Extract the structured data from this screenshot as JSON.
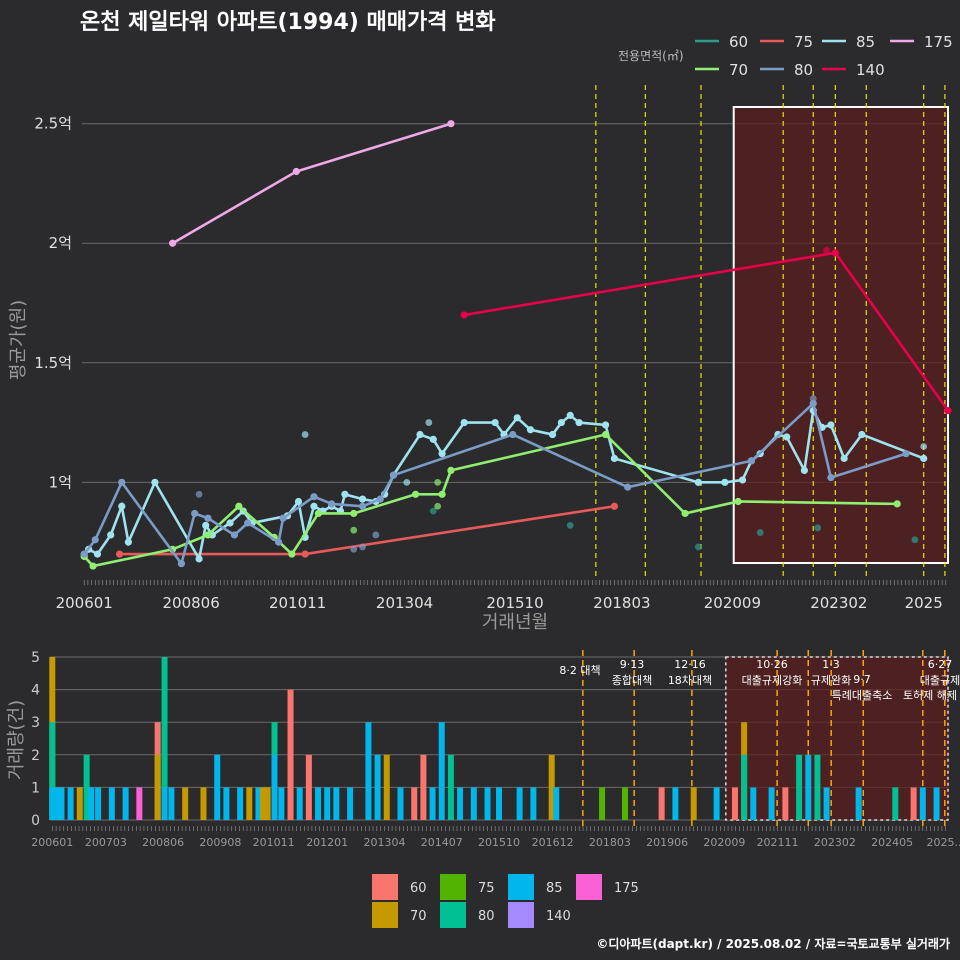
{
  "title": "온천 제일타워 아파트(1994) 매매가격 변화",
  "credit": "©디아파트(dapt.kr) / 2025.08.02 / 자료=국토교통부 실거래가",
  "colors": {
    "bg": "#2b2b2d",
    "grid": "#6b6b6b",
    "highlight": "#5a1f1f",
    "policy_line": "#e6e600",
    "policy_line_bottom": "#ffa500"
  },
  "top_chart": {
    "legend_title": "전용면적(㎡)",
    "ylabel": "평균가(원)",
    "xlabel": "거래년월",
    "y_ticks": [
      {
        "v": 1.0,
        "label": "1억"
      },
      {
        "v": 1.5,
        "label": "1.5억"
      },
      {
        "v": 2.0,
        "label": "2억"
      },
      {
        "v": 2.5,
        "label": "2.5억"
      }
    ],
    "x_ticks": [
      {
        "t": 2006.0,
        "label": "200601"
      },
      {
        "t": 2008.42,
        "label": "200806"
      },
      {
        "t": 2010.83,
        "label": "201011"
      },
      {
        "t": 2013.25,
        "label": "201304"
      },
      {
        "t": 2015.75,
        "label": "201510"
      },
      {
        "t": 2018.17,
        "label": "201803"
      },
      {
        "t": 2020.67,
        "label": "202009"
      },
      {
        "t": 2023.08,
        "label": "202302"
      },
      {
        "t": 2025.0,
        "label": "2025"
      }
    ]
  },
  "bottom_chart": {
    "ylabel": "거래량(건)",
    "y_ticks": [
      0,
      1,
      2,
      3,
      4,
      5
    ],
    "x_ticks": [
      {
        "t": 2006.0,
        "label": "200601"
      },
      {
        "t": 2007.17,
        "label": "200703"
      },
      {
        "t": 2008.42,
        "label": "200806"
      },
      {
        "t": 2009.67,
        "label": "200908"
      },
      {
        "t": 2010.83,
        "label": "201011"
      },
      {
        "t": 2012.0,
        "label": "201201"
      },
      {
        "t": 2013.25,
        "label": "201304"
      },
      {
        "t": 2014.5,
        "label": "201407"
      },
      {
        "t": 2015.75,
        "label": "201510"
      },
      {
        "t": 2016.92,
        "label": "201612"
      },
      {
        "t": 2018.17,
        "label": "201803"
      },
      {
        "t": 2019.42,
        "label": "201906"
      },
      {
        "t": 2020.67,
        "label": "202009"
      },
      {
        "t": 2021.83,
        "label": "202111"
      },
      {
        "t": 2023.08,
        "label": "202302"
      },
      {
        "t": 2024.33,
        "label": "202405"
      },
      {
        "t": 2025.5,
        "label": "2025..."
      }
    ],
    "annotations": [
      {
        "t": 2017.58,
        "date": "8·2",
        "text": "8·2 대책"
      },
      {
        "t": 2018.7,
        "date": "9·13",
        "text": "종합대책"
      },
      {
        "t": 2019.96,
        "date": "12·16",
        "text": "18차대책"
      },
      {
        "t": 2021.82,
        "date": "10·26",
        "text": "대출규제강화"
      },
      {
        "t": 2023.0,
        "date": "1·3",
        "text": "규제완화"
      },
      {
        "t": 2023.7,
        "date": "9·7",
        "text": "특례대출축소"
      },
      {
        "t": 2025.48,
        "date": "6·27",
        "text": "대출규제"
      },
      {
        "t": 2025.0,
        "date": "",
        "text": "토허제 해제"
      }
    ]
  },
  "chart_data": {
    "type": "line",
    "x_unit": "year (decimal, from 거래년월)",
    "y_unit": "억원",
    "x_range": [
      2005.95,
      2025.55
    ],
    "ylim": [
      0.6,
      2.62
    ],
    "highlight_range": [
      2020.7,
      2025.55
    ],
    "policy_dates": [
      2017.58,
      2018.7,
      2019.96,
      2021.82,
      2022.5,
      2023.0,
      2023.7,
      2025.0,
      2025.48
    ],
    "series": [
      {
        "name": "60",
        "color": "#2a9d8f",
        "points": [],
        "scatter": [
          [
            2013.9,
            0.88
          ],
          [
            2017.0,
            0.82
          ],
          [
            2019.9,
            0.73
          ],
          [
            2021.3,
            0.79
          ],
          [
            2022.6,
            0.81
          ],
          [
            2024.8,
            0.76
          ]
        ]
      },
      {
        "name": "75",
        "color": "#e85a5a",
        "points": [
          [
            2006.8,
            0.7
          ],
          [
            2011.0,
            0.7
          ],
          [
            2018.0,
            0.9
          ]
        ],
        "scatter": []
      },
      {
        "name": "85",
        "color": "#9fe3f0",
        "points": [
          [
            2006.0,
            0.7
          ],
          [
            2006.1,
            0.72
          ],
          [
            2006.3,
            0.7
          ],
          [
            2006.6,
            0.78
          ],
          [
            2006.85,
            0.9
          ],
          [
            2007.0,
            0.75
          ],
          [
            2007.6,
            1.0
          ],
          [
            2008.6,
            0.68
          ],
          [
            2008.75,
            0.82
          ],
          [
            2008.9,
            0.78
          ],
          [
            2009.3,
            0.83
          ],
          [
            2009.6,
            0.88
          ],
          [
            2009.8,
            0.83
          ],
          [
            2010.6,
            0.86
          ],
          [
            2010.85,
            0.92
          ],
          [
            2011.0,
            0.77
          ],
          [
            2011.2,
            0.9
          ],
          [
            2011.4,
            0.88
          ],
          [
            2011.6,
            0.9
          ],
          [
            2011.8,
            0.88
          ],
          [
            2011.9,
            0.95
          ],
          [
            2012.3,
            0.93
          ],
          [
            2012.6,
            0.92
          ],
          [
            2012.8,
            0.95
          ],
          [
            2013.0,
            1.03
          ],
          [
            2013.6,
            1.2
          ],
          [
            2013.9,
            1.18
          ],
          [
            2014.1,
            1.12
          ],
          [
            2014.6,
            1.25
          ],
          [
            2015.3,
            1.25
          ],
          [
            2015.5,
            1.2
          ],
          [
            2015.8,
            1.27
          ],
          [
            2016.1,
            1.22
          ],
          [
            2016.6,
            1.2
          ],
          [
            2016.8,
            1.25
          ],
          [
            2017.0,
            1.28
          ],
          [
            2017.2,
            1.25
          ],
          [
            2017.8,
            1.24
          ],
          [
            2018.0,
            1.1
          ],
          [
            2019.9,
            1.0
          ],
          [
            2020.5,
            1.0
          ],
          [
            2020.9,
            1.01
          ],
          [
            2021.1,
            1.09
          ],
          [
            2021.3,
            1.12
          ],
          [
            2021.7,
            1.2
          ],
          [
            2021.9,
            1.19
          ],
          [
            2022.3,
            1.05
          ],
          [
            2022.5,
            1.3
          ],
          [
            2022.7,
            1.23
          ],
          [
            2022.9,
            1.24
          ],
          [
            2023.2,
            1.1
          ],
          [
            2023.6,
            1.2
          ],
          [
            2025.0,
            1.1
          ]
        ],
        "scatter": [
          [
            2011.0,
            1.2
          ],
          [
            2013.3,
            1.0
          ],
          [
            2013.8,
            1.25
          ],
          [
            2025.0,
            1.15
          ]
        ]
      },
      {
        "name": "175",
        "color": "#f0a8e6",
        "points": [
          [
            2008.0,
            2.0
          ],
          [
            2010.8,
            2.3
          ],
          [
            2014.3,
            2.5
          ]
        ],
        "scatter": []
      },
      {
        "name": "70",
        "color": "#90ee70",
        "points": [
          [
            2006.0,
            0.69
          ],
          [
            2006.2,
            0.65
          ],
          [
            2008.0,
            0.72
          ],
          [
            2008.8,
            0.78
          ],
          [
            2009.5,
            0.9
          ],
          [
            2010.3,
            0.77
          ],
          [
            2010.7,
            0.7
          ],
          [
            2011.3,
            0.87
          ],
          [
            2012.1,
            0.87
          ],
          [
            2013.5,
            0.95
          ],
          [
            2014.1,
            0.95
          ],
          [
            2014.3,
            1.05
          ],
          [
            2017.8,
            1.2
          ],
          [
            2019.6,
            0.87
          ],
          [
            2020.8,
            0.92
          ],
          [
            2024.4,
            0.91
          ]
        ],
        "scatter": [
          [
            2012.1,
            0.8
          ],
          [
            2014.0,
            0.9
          ],
          [
            2014.0,
            1.0
          ]
        ]
      },
      {
        "name": "80",
        "color": "#7a9cc6",
        "points": [
          [
            2006.0,
            0.7
          ],
          [
            2006.25,
            0.76
          ],
          [
            2006.85,
            1.0
          ],
          [
            2008.2,
            0.66
          ],
          [
            2008.5,
            0.87
          ],
          [
            2008.8,
            0.85
          ],
          [
            2009.4,
            0.78
          ],
          [
            2009.7,
            0.83
          ],
          [
            2010.4,
            0.75
          ],
          [
            2010.5,
            0.85
          ],
          [
            2011.2,
            0.94
          ],
          [
            2011.6,
            0.91
          ],
          [
            2012.3,
            0.9
          ],
          [
            2012.7,
            0.93
          ],
          [
            2013.0,
            1.03
          ],
          [
            2015.7,
            1.2
          ],
          [
            2018.3,
            0.98
          ],
          [
            2021.1,
            1.09
          ],
          [
            2022.5,
            1.33
          ],
          [
            2022.9,
            1.02
          ],
          [
            2024.6,
            1.12
          ]
        ],
        "scatter": [
          [
            2008.6,
            0.95
          ],
          [
            2012.1,
            0.72
          ],
          [
            2012.3,
            0.73
          ],
          [
            2012.6,
            0.78
          ],
          [
            2022.5,
            1.35
          ]
        ]
      },
      {
        "name": "140",
        "color": "#e8004a",
        "points": [
          [
            2014.6,
            1.7
          ],
          [
            2023.0,
            1.96
          ],
          [
            2025.55,
            1.3
          ]
        ],
        "scatter": [
          [
            2022.8,
            1.97
          ]
        ]
      }
    ],
    "bar_colors": {
      "60": "#f8766d",
      "75": "#53b400",
      "85": "#00b6eb",
      "175": "#fb61d7",
      "70": "#c49a00",
      "80": "#00c094",
      "140": "#a58aff"
    },
    "bars": [
      [
        2006.0,
        [
          [
            "70",
            5
          ],
          [
            "80",
            3
          ],
          [
            "85",
            1
          ]
        ]
      ],
      [
        2006.1,
        [
          [
            "85",
            1
          ]
        ]
      ],
      [
        2006.2,
        [
          [
            "85",
            1
          ]
        ]
      ],
      [
        2006.4,
        [
          [
            "85",
            1
          ]
        ]
      ],
      [
        2006.6,
        [
          [
            "70",
            1
          ]
        ]
      ],
      [
        2006.75,
        [
          [
            "80",
            2
          ]
        ]
      ],
      [
        2006.85,
        [
          [
            "85",
            1
          ]
        ]
      ],
      [
        2007.0,
        [
          [
            "85",
            1
          ]
        ]
      ],
      [
        2007.3,
        [
          [
            "85",
            1
          ]
        ]
      ],
      [
        2007.6,
        [
          [
            "85",
            1
          ]
        ]
      ],
      [
        2007.9,
        [
          [
            "175",
            1
          ]
        ]
      ],
      [
        2008.3,
        [
          [
            "60",
            3
          ],
          [
            "70",
            2
          ]
        ]
      ],
      [
        2008.45,
        [
          [
            "80",
            5
          ],
          [
            "85",
            1
          ]
        ]
      ],
      [
        2008.6,
        [
          [
            "85",
            1
          ]
        ]
      ],
      [
        2008.9,
        [
          [
            "70",
            1
          ]
        ]
      ],
      [
        2009.3,
        [
          [
            "70",
            1
          ]
        ]
      ],
      [
        2009.6,
        [
          [
            "85",
            2
          ]
        ]
      ],
      [
        2009.8,
        [
          [
            "85",
            1
          ]
        ]
      ],
      [
        2010.1,
        [
          [
            "85",
            1
          ]
        ]
      ],
      [
        2010.3,
        [
          [
            "70",
            1
          ]
        ]
      ],
      [
        2010.5,
        [
          [
            "85",
            1
          ]
        ]
      ],
      [
        2010.6,
        [
          [
            "70",
            1
          ]
        ]
      ],
      [
        2010.7,
        [
          [
            "70",
            1
          ]
        ]
      ],
      [
        2010.85,
        [
          [
            "80",
            3
          ],
          [
            "85",
            2
          ]
        ]
      ],
      [
        2011.0,
        [
          [
            "85",
            1
          ]
        ]
      ],
      [
        2011.2,
        [
          [
            "60",
            4
          ]
        ]
      ],
      [
        2011.4,
        [
          [
            "85",
            1
          ]
        ]
      ],
      [
        2011.6,
        [
          [
            "60",
            2
          ]
        ]
      ],
      [
        2011.8,
        [
          [
            "85",
            1
          ]
        ]
      ],
      [
        2012.0,
        [
          [
            "85",
            1
          ]
        ]
      ],
      [
        2012.2,
        [
          [
            "85",
            1
          ]
        ]
      ],
      [
        2012.5,
        [
          [
            "85",
            1
          ]
        ]
      ],
      [
        2012.9,
        [
          [
            "85",
            3
          ]
        ]
      ],
      [
        2013.1,
        [
          [
            "85",
            2
          ]
        ]
      ],
      [
        2013.3,
        [
          [
            "70",
            2
          ]
        ]
      ],
      [
        2013.6,
        [
          [
            "85",
            1
          ]
        ]
      ],
      [
        2013.9,
        [
          [
            "60",
            1
          ]
        ]
      ],
      [
        2014.1,
        [
          [
            "60",
            2
          ]
        ]
      ],
      [
        2014.3,
        [
          [
            "85",
            1
          ]
        ]
      ],
      [
        2014.5,
        [
          [
            "85",
            3
          ]
        ]
      ],
      [
        2014.7,
        [
          [
            "80",
            2
          ]
        ]
      ],
      [
        2014.9,
        [
          [
            "85",
            1
          ]
        ]
      ],
      [
        2015.2,
        [
          [
            "85",
            1
          ]
        ]
      ],
      [
        2015.5,
        [
          [
            "85",
            1
          ]
        ]
      ],
      [
        2015.75,
        [
          [
            "85",
            1
          ]
        ]
      ],
      [
        2016.2,
        [
          [
            "85",
            1
          ]
        ]
      ],
      [
        2016.5,
        [
          [
            "85",
            1
          ]
        ]
      ],
      [
        2016.9,
        [
          [
            "70",
            2
          ]
        ]
      ],
      [
        2017.0,
        [
          [
            "85",
            1
          ]
        ]
      ],
      [
        2018.0,
        [
          [
            "75",
            1
          ]
        ]
      ],
      [
        2018.5,
        [
          [
            "75",
            1
          ]
        ]
      ],
      [
        2019.3,
        [
          [
            "60",
            1
          ]
        ]
      ],
      [
        2019.6,
        [
          [
            "85",
            1
          ]
        ]
      ],
      [
        2020.0,
        [
          [
            "70",
            1
          ]
        ]
      ],
      [
        2020.5,
        [
          [
            "85",
            1
          ]
        ]
      ],
      [
        2020.9,
        [
          [
            "60",
            1
          ]
        ]
      ],
      [
        2021.1,
        [
          [
            "70",
            3
          ],
          [
            "80",
            2
          ]
        ]
      ],
      [
        2021.3,
        [
          [
            "85",
            1
          ]
        ]
      ],
      [
        2021.7,
        [
          [
            "85",
            1
          ]
        ]
      ],
      [
        2022.0,
        [
          [
            "60",
            1
          ]
        ]
      ],
      [
        2022.3,
        [
          [
            "80",
            2
          ]
        ]
      ],
      [
        2022.5,
        [
          [
            "85",
            2
          ]
        ]
      ],
      [
        2022.7,
        [
          [
            "80",
            2
          ]
        ]
      ],
      [
        2022.9,
        [
          [
            "85",
            1
          ]
        ]
      ],
      [
        2023.6,
        [
          [
            "85",
            1
          ]
        ]
      ],
      [
        2024.4,
        [
          [
            "80",
            1
          ]
        ]
      ],
      [
        2024.8,
        [
          [
            "60",
            1
          ]
        ]
      ],
      [
        2025.0,
        [
          [
            "85",
            1
          ]
        ]
      ],
      [
        2025.3,
        [
          [
            "85",
            1
          ]
        ]
      ]
    ],
    "legend_bottom": [
      "60",
      "75",
      "85",
      "175",
      "70",
      "80",
      "140"
    ]
  }
}
